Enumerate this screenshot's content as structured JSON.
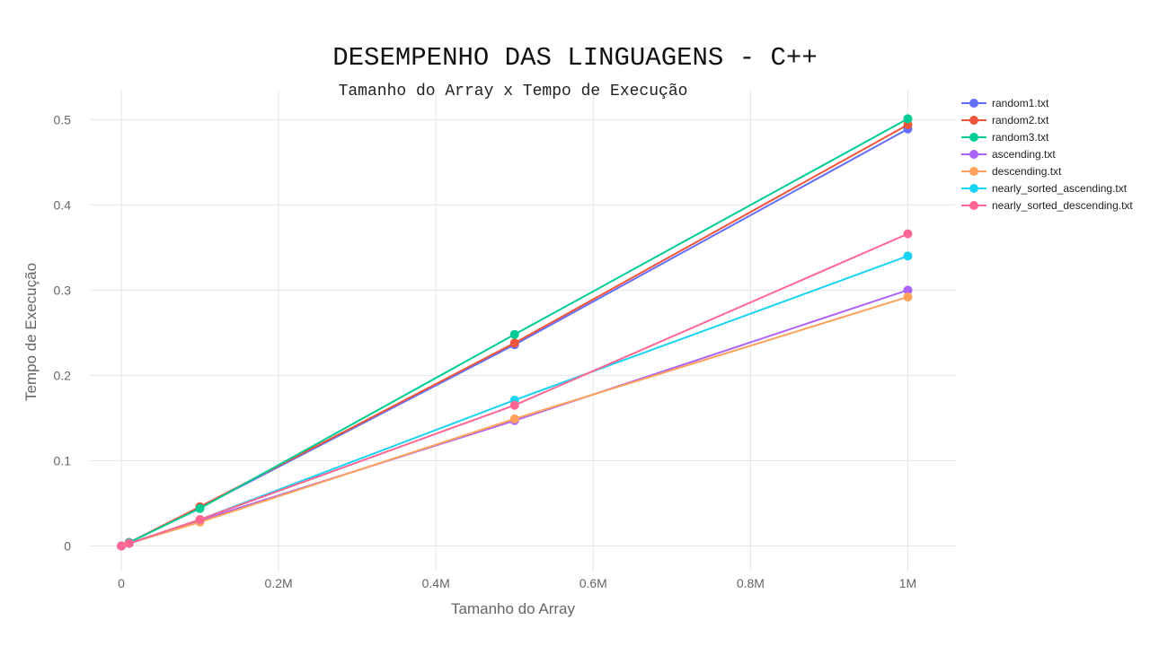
{
  "chart_data": {
    "type": "line",
    "title": "DESEMPENHO DAS LINGUAGENS - C++",
    "subtitle": "Tamanho do Array x Tempo de Execução",
    "xlabel": "Tamanho do Array",
    "ylabel": "Tempo de Execução",
    "xlim": [
      -40000,
      1060000
    ],
    "ylim": [
      -0.03,
      0.535
    ],
    "x_ticks": [
      0,
      200000,
      400000,
      600000,
      800000,
      1000000
    ],
    "x_tick_labels": [
      "0",
      "0.2M",
      "0.4M",
      "0.6M",
      "0.8M",
      "1M"
    ],
    "y_ticks": [
      0,
      0.1,
      0.2,
      0.3,
      0.4,
      0.5
    ],
    "y_tick_labels": [
      "0",
      "0.1",
      "0.2",
      "0.3",
      "0.4",
      "0.5"
    ],
    "grid": true,
    "legend_position": "top-right",
    "x": [
      100,
      10000,
      100000,
      500000,
      1000000
    ],
    "series": [
      {
        "name": "random1.txt",
        "color": "#636efa",
        "values": [
          0.0,
          0.004,
          0.045,
          0.236,
          0.489
        ]
      },
      {
        "name": "random2.txt",
        "color": "#EF553B",
        "values": [
          0.0,
          0.004,
          0.046,
          0.238,
          0.494
        ]
      },
      {
        "name": "random3.txt",
        "color": "#00cc96",
        "values": [
          0.0,
          0.004,
          0.044,
          0.248,
          0.501
        ]
      },
      {
        "name": "ascending.txt",
        "color": "#ab63fa",
        "values": [
          0.0,
          0.003,
          0.03,
          0.147,
          0.3
        ]
      },
      {
        "name": "descending.txt",
        "color": "#FFA15A",
        "values": [
          0.0,
          0.003,
          0.028,
          0.149,
          0.292
        ]
      },
      {
        "name": "nearly_sorted_ascending.txt",
        "color": "#19d3f3",
        "values": [
          0.0,
          0.003,
          0.031,
          0.171,
          0.34
        ]
      },
      {
        "name": "nearly_sorted_descending.txt",
        "color": "#FF6692",
        "values": [
          0.0,
          0.003,
          0.031,
          0.165,
          0.366
        ]
      }
    ]
  }
}
